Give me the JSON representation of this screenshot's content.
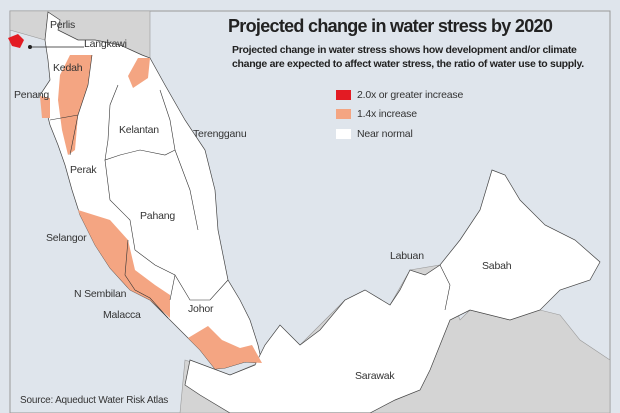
{
  "title": "Projected change in water stress by 2020",
  "subtitle": "Projected change in water stress shows how development and/or climate change are expected to affect  water stress, the ratio of water use to supply.",
  "legend": [
    {
      "label": "2.0x or greater increase",
      "color": "#e31b23"
    },
    {
      "label": "1.4x increase",
      "color": "#f4a582"
    },
    {
      "label": "Near normal",
      "color": "#ffffff"
    }
  ],
  "regions": {
    "perlis": "Perlis",
    "langkawi": "Langkawi",
    "kedah": "Kedah",
    "penang": "Penang",
    "kelantan": "Kelantan",
    "terengganu": "Terengganu",
    "perak": "Perak",
    "pahang": "Pahang",
    "selangor": "Selangor",
    "nsembilan": "N Sembilan",
    "malacca": "Malacca",
    "johor": "Johor",
    "labuan": "Labuan",
    "sabah": "Sabah",
    "sarawak": "Sarawak"
  },
  "source": "Source: Aqueduct Water Risk Atlas",
  "colors": {
    "sea": "#dfe5ec",
    "neighbor_land": "#d4d4d4",
    "malaysia_land": "#ffffff",
    "border": "#333333"
  }
}
